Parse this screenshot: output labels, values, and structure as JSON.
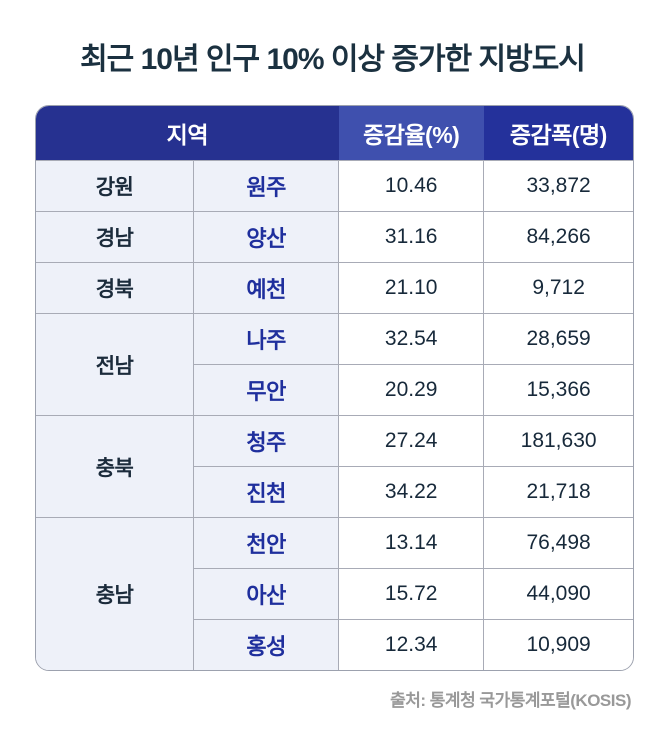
{
  "title": "최근 10년 인구 10% 이상 증가한 지방도시",
  "source": "출처: 통계청 국가통계포털(KOSIS)",
  "colors": {
    "header_region_bg": "#263190",
    "header_rate_bg": "#3f50ae",
    "header_change_bg": "#24319b",
    "region_cell_bg": "#eef1f9",
    "value_cell_bg": "#ffffff",
    "city_text": "#1f2f9d",
    "title_text": "#1b3140",
    "border": "#a8abb6"
  },
  "chart_data": {
    "type": "table",
    "title": "최근 10년 인구 10% 이상 증가한 지방도시",
    "columns": [
      "지역",
      "증감율(%)",
      "증감폭(명)"
    ],
    "headers": {
      "region": "지역",
      "rate": "증감율(%)",
      "change": "증감폭(명)"
    },
    "rows": [
      {
        "province": "강원",
        "province_rowspan": 1,
        "city": "원주",
        "rate": "10.46",
        "change": "33,872"
      },
      {
        "province": "경남",
        "province_rowspan": 1,
        "city": "양산",
        "rate": "31.16",
        "change": "84,266"
      },
      {
        "province": "경북",
        "province_rowspan": 1,
        "city": "예천",
        "rate": "21.10",
        "change": "9,712"
      },
      {
        "province": "전남",
        "province_rowspan": 2,
        "city": "나주",
        "rate": "32.54",
        "change": "28,659"
      },
      {
        "city": "무안",
        "rate": "20.29",
        "change": "15,366"
      },
      {
        "province": "충북",
        "province_rowspan": 2,
        "city": "청주",
        "rate": "27.24",
        "change": "181,630"
      },
      {
        "city": "진천",
        "rate": "34.22",
        "change": "21,718"
      },
      {
        "province": "충남",
        "province_rowspan": 3,
        "city": "천안",
        "rate": "13.14",
        "change": "76,498"
      },
      {
        "city": "아산",
        "rate": "15.72",
        "change": "44,090"
      },
      {
        "city": "홍성",
        "rate": "12.34",
        "change": "10,909"
      }
    ],
    "source": "출처: 통계청 국가통계포털(KOSIS)"
  }
}
